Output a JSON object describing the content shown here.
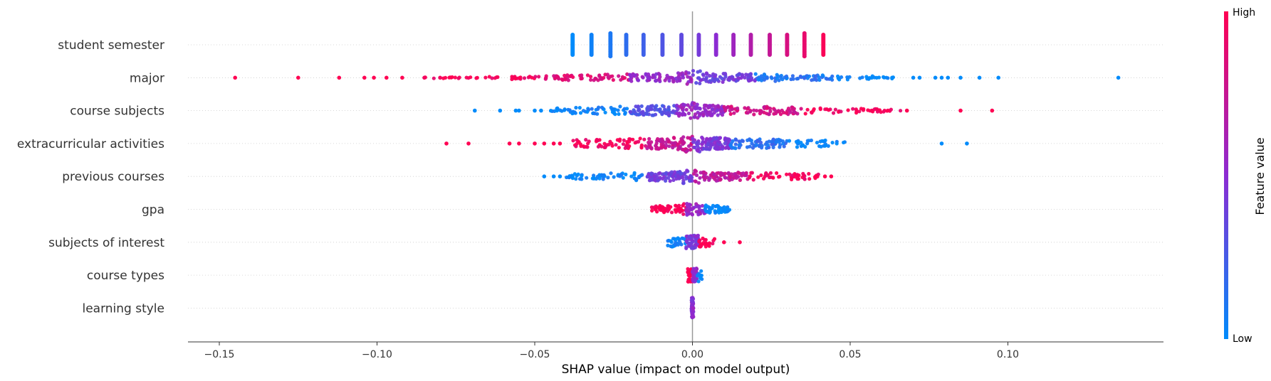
{
  "chart_data": {
    "type": "scatter",
    "subtype": "shap-beeswarm",
    "title": "",
    "xlabel": "SHAP value (impact on model output)",
    "xlim": [
      -0.16,
      0.15
    ],
    "x_ticks": [
      -0.15,
      -0.1,
      -0.05,
      0.0,
      0.05,
      0.1
    ],
    "x_tick_labels": [
      "−0.15",
      "−0.10",
      "−0.05",
      "0.00",
      "0.05",
      "0.10"
    ],
    "colorbar": {
      "title": "Feature value",
      "high_label": "High",
      "low_label": "Low",
      "high_color": "#ff0052",
      "mid_color": "#8c2bd2",
      "low_color": "#008bfb"
    },
    "features": [
      {
        "name": "student semester",
        "shape": "discrete",
        "points": [
          {
            "x": -0.038,
            "v": 0.0
          },
          {
            "x": -0.032,
            "v": 0.05
          },
          {
            "x": -0.026,
            "v": 0.1
          },
          {
            "x": -0.021,
            "v": 0.16
          },
          {
            "x": -0.0155,
            "v": 0.22
          },
          {
            "x": -0.0095,
            "v": 0.28
          },
          {
            "x": -0.0035,
            "v": 0.34
          },
          {
            "x": 0.002,
            "v": 0.42
          },
          {
            "x": 0.0075,
            "v": 0.5
          },
          {
            "x": 0.013,
            "v": 0.58
          },
          {
            "x": 0.0185,
            "v": 0.66
          },
          {
            "x": 0.0245,
            "v": 0.74
          },
          {
            "x": 0.03,
            "v": 0.82
          },
          {
            "x": 0.0355,
            "v": 0.9
          },
          {
            "x": 0.0415,
            "v": 0.98
          }
        ]
      },
      {
        "name": "major",
        "shape": "swarm",
        "spread": 7,
        "outliers": [
          {
            "x": -0.145,
            "v": 1.0
          },
          {
            "x": -0.125,
            "v": 1.0
          },
          {
            "x": -0.112,
            "v": 1.0
          },
          {
            "x": -0.104,
            "v": 1.0
          },
          {
            "x": -0.101,
            "v": 1.0
          },
          {
            "x": -0.097,
            "v": 1.0
          },
          {
            "x": -0.092,
            "v": 1.0
          },
          {
            "x": -0.085,
            "v": 0.95
          },
          {
            "x": -0.08,
            "v": 0.95
          },
          {
            "x": 0.07,
            "v": 0.0
          },
          {
            "x": 0.072,
            "v": 0.0
          },
          {
            "x": 0.077,
            "v": 0.0
          },
          {
            "x": 0.079,
            "v": 0.0
          },
          {
            "x": 0.081,
            "v": 0.0
          },
          {
            "x": 0.085,
            "v": 0.0
          },
          {
            "x": 0.091,
            "v": 0.0
          },
          {
            "x": 0.097,
            "v": 0.0
          },
          {
            "x": 0.135,
            "v": 0.0
          }
        ],
        "segments": [
          {
            "from": -0.085,
            "to": -0.05,
            "v": 0.97,
            "n": 40
          },
          {
            "from": -0.05,
            "to": -0.02,
            "v": 0.85,
            "n": 60
          },
          {
            "from": -0.02,
            "to": 0.0,
            "v": 0.55,
            "n": 80
          },
          {
            "from": 0.0,
            "to": 0.02,
            "v": 0.4,
            "n": 80
          },
          {
            "from": 0.02,
            "to": 0.045,
            "v": 0.12,
            "n": 60
          },
          {
            "from": 0.045,
            "to": 0.065,
            "v": 0.0,
            "n": 25
          }
        ]
      },
      {
        "name": "course subjects",
        "shape": "swarm",
        "spread": 8,
        "outliers": [
          {
            "x": -0.069,
            "v": 0.0
          },
          {
            "x": -0.061,
            "v": 0.0
          },
          {
            "x": -0.056,
            "v": 0.0
          },
          {
            "x": -0.055,
            "v": 0.0
          },
          {
            "x": -0.05,
            "v": 0.0
          },
          {
            "x": -0.048,
            "v": 0.0
          },
          {
            "x": 0.068,
            "v": 1.0
          },
          {
            "x": 0.085,
            "v": 1.0
          },
          {
            "x": 0.095,
            "v": 1.0
          }
        ],
        "segments": [
          {
            "from": -0.045,
            "to": -0.02,
            "v": 0.03,
            "n": 60
          },
          {
            "from": -0.02,
            "to": -0.005,
            "v": 0.3,
            "n": 80
          },
          {
            "from": -0.005,
            "to": 0.01,
            "v": 0.55,
            "n": 100
          },
          {
            "from": 0.01,
            "to": 0.035,
            "v": 0.8,
            "n": 70
          },
          {
            "from": 0.035,
            "to": 0.066,
            "v": 0.97,
            "n": 45
          }
        ]
      },
      {
        "name": "extracurricular activities",
        "shape": "swarm",
        "spread": 9,
        "outliers": [
          {
            "x": -0.078,
            "v": 1.0
          },
          {
            "x": -0.071,
            "v": 1.0
          },
          {
            "x": -0.058,
            "v": 1.0
          },
          {
            "x": -0.055,
            "v": 1.0
          },
          {
            "x": -0.05,
            "v": 1.0
          },
          {
            "x": -0.047,
            "v": 1.0
          },
          {
            "x": -0.044,
            "v": 1.0
          },
          {
            "x": -0.042,
            "v": 1.0
          },
          {
            "x": 0.079,
            "v": 0.0
          },
          {
            "x": 0.087,
            "v": 0.0
          }
        ],
        "segments": [
          {
            "from": -0.038,
            "to": -0.015,
            "v": 0.96,
            "n": 60
          },
          {
            "from": -0.015,
            "to": 0.0,
            "v": 0.75,
            "n": 90
          },
          {
            "from": 0.0,
            "to": 0.012,
            "v": 0.45,
            "n": 110
          },
          {
            "from": 0.012,
            "to": 0.03,
            "v": 0.15,
            "n": 70
          },
          {
            "from": 0.03,
            "to": 0.05,
            "v": 0.0,
            "n": 35
          }
        ]
      },
      {
        "name": "previous courses",
        "shape": "swarm",
        "spread": 7,
        "outliers": [
          {
            "x": -0.047,
            "v": 0.0
          },
          {
            "x": -0.044,
            "v": 0.0
          },
          {
            "x": -0.042,
            "v": 0.0
          },
          {
            "x": 0.042,
            "v": 1.0
          },
          {
            "x": 0.044,
            "v": 1.0
          }
        ],
        "segments": [
          {
            "from": -0.04,
            "to": -0.015,
            "v": 0.02,
            "n": 55
          },
          {
            "from": -0.015,
            "to": 0.0,
            "v": 0.4,
            "n": 90
          },
          {
            "from": 0.0,
            "to": 0.018,
            "v": 0.72,
            "n": 80
          },
          {
            "from": 0.018,
            "to": 0.04,
            "v": 0.96,
            "n": 50
          }
        ]
      },
      {
        "name": "gpa",
        "shape": "swarm",
        "spread": 6,
        "outliers": [],
        "segments": [
          {
            "from": -0.013,
            "to": -0.002,
            "v": 1.0,
            "n": 50
          },
          {
            "from": -0.002,
            "to": 0.004,
            "v": 0.55,
            "n": 40
          },
          {
            "from": 0.004,
            "to": 0.012,
            "v": 0.02,
            "n": 45
          }
        ]
      },
      {
        "name": "subjects of interest",
        "shape": "swarm",
        "spread": 7,
        "outliers": [
          {
            "x": 0.01,
            "v": 1.0
          },
          {
            "x": 0.015,
            "v": 1.0
          }
        ],
        "segments": [
          {
            "from": -0.008,
            "to": -0.002,
            "v": 0.02,
            "n": 30
          },
          {
            "from": -0.002,
            "to": 0.002,
            "v": 0.45,
            "n": 60
          },
          {
            "from": 0.002,
            "to": 0.007,
            "v": 1.0,
            "n": 25
          }
        ]
      },
      {
        "name": "course types",
        "shape": "swarm",
        "spread": 7,
        "outliers": [],
        "segments": [
          {
            "from": -0.0015,
            "to": 0.0,
            "v": 1.0,
            "n": 30
          },
          {
            "from": 0.0,
            "to": 0.0015,
            "v": 0.5,
            "n": 40
          },
          {
            "from": 0.0015,
            "to": 0.0035,
            "v": 0.0,
            "n": 10
          }
        ]
      },
      {
        "name": "learning style",
        "shape": "swarm",
        "spread": 11,
        "outliers": [],
        "segments": [
          {
            "from": -0.0003,
            "to": 0.0003,
            "v": 0.5,
            "n": 40
          }
        ]
      }
    ]
  }
}
